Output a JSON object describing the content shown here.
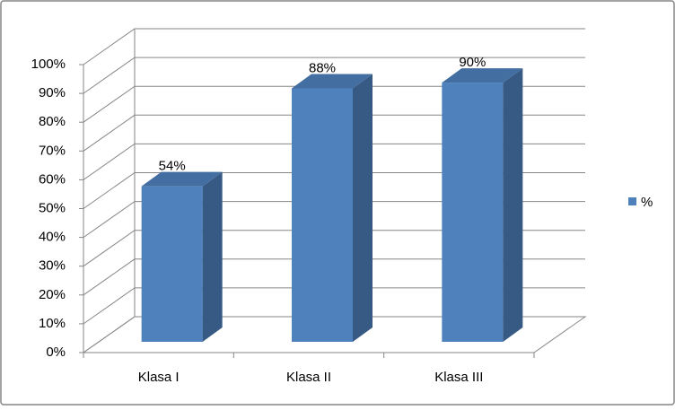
{
  "chart_data": {
    "type": "bar3d",
    "categories": [
      "Klasa I",
      "Klasa II",
      "Klasa III"
    ],
    "series": [
      {
        "name": "%",
        "color": "#4f81bd",
        "values": [
          54,
          88,
          90
        ],
        "value_labels": [
          "54%",
          "88%",
          "90%"
        ]
      }
    ],
    "ylim": [
      0,
      100
    ],
    "yticks": [
      {
        "value": 0,
        "label": "0%"
      },
      {
        "value": 10,
        "label": "10%"
      },
      {
        "value": 20,
        "label": "20%"
      },
      {
        "value": 30,
        "label": "30%"
      },
      {
        "value": 40,
        "label": "40%"
      },
      {
        "value": 50,
        "label": "50%"
      },
      {
        "value": 60,
        "label": "60%"
      },
      {
        "value": 70,
        "label": "70%"
      },
      {
        "value": 80,
        "label": "80%"
      },
      {
        "value": 90,
        "label": "90%"
      },
      {
        "value": 100,
        "label": "100%"
      }
    ],
    "grid": true,
    "legend": "right"
  }
}
